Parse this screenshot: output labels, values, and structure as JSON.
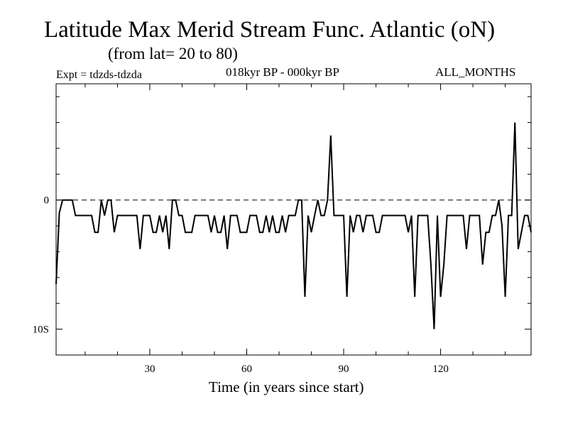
{
  "chart_data": {
    "type": "line",
    "title": "Latitude Max Merid Stream Func. Atlantic (oN)",
    "subtitle": "(from lat= 20 to 80)",
    "experiment": "Expt = tdzds-tdzda",
    "period": "018kyr BP - 000kyr BP",
    "months": "ALL_MONTHS",
    "xlabel": "Time (in years since start)",
    "ylabel": "",
    "xlim": [
      1,
      148
    ],
    "ylim": [
      -12,
      9
    ],
    "x_ticks": [
      30,
      60,
      90,
      120
    ],
    "x_tick_labels": [
      "30",
      "60",
      "90",
      "120"
    ],
    "y_ticks": [
      0,
      -10
    ],
    "y_tick_labels": [
      "0",
      "10S"
    ],
    "reference_line": 0,
    "x_start": 1,
    "values": [
      -6.5,
      -1,
      0,
      0,
      0,
      0,
      -1.2,
      -1.2,
      -1.2,
      -1.2,
      -1.2,
      -1.2,
      -2.5,
      -2.5,
      0,
      -1.2,
      0,
      0,
      -2.5,
      -1.2,
      -1.2,
      -1.2,
      -1.2,
      -1.2,
      -1.2,
      -1.2,
      -3.8,
      -1.2,
      -1.2,
      -1.2,
      -2.5,
      -2.5,
      -1.2,
      -2.5,
      -1.2,
      -3.8,
      0,
      0,
      -1.2,
      -1.2,
      -2.5,
      -2.5,
      -2.5,
      -1.2,
      -1.2,
      -1.2,
      -1.2,
      -1.2,
      -2.5,
      -1.2,
      -2.5,
      -2.5,
      -1.2,
      -3.8,
      -1.2,
      -1.2,
      -1.2,
      -2.5,
      -2.5,
      -2.5,
      -1.2,
      -1.2,
      -1.2,
      -2.5,
      -2.5,
      -1.2,
      -2.5,
      -1.2,
      -2.5,
      -2.5,
      -1.2,
      -2.5,
      -1.2,
      -1.2,
      -1.2,
      0,
      0,
      -7.5,
      -1.2,
      -2.5,
      -1.2,
      0,
      -1.2,
      -1.2,
      0,
      5,
      -1.2,
      -1.2,
      -1.2,
      -1.2,
      -7.5,
      -1.2,
      -2.5,
      -1.2,
      -1.2,
      -2.5,
      -1.2,
      -1.2,
      -1.2,
      -2.5,
      -2.5,
      -1.2,
      -1.2,
      -1.2,
      -1.2,
      -1.2,
      -1.2,
      -1.2,
      -1.2,
      -2.5,
      -1.2,
      -7.5,
      -1.2,
      -1.2,
      -1.2,
      -1.2,
      -5,
      -10,
      -1.2,
      -7.5,
      -5,
      -1.2,
      -1.2,
      -1.2,
      -1.2,
      -1.2,
      -1.2,
      -3.8,
      -1.2,
      -1.2,
      -1.2,
      -1.2,
      -5,
      -2.5,
      -2.5,
      -1.2,
      -1.2,
      0,
      -2,
      -7.5,
      -1.2,
      -1.2,
      6,
      -3.8,
      -2.5,
      -1.2,
      -1.2,
      -2.5
    ]
  }
}
